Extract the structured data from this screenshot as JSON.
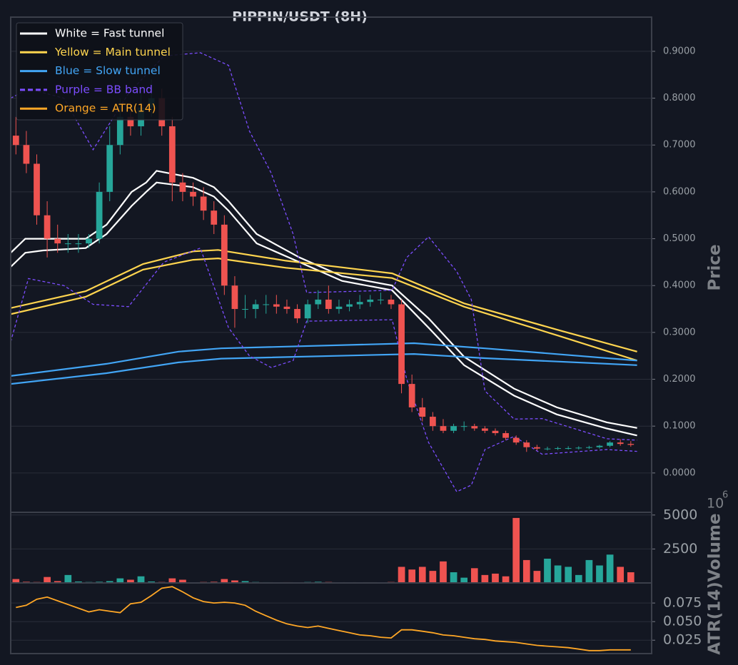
{
  "chart_data": [
    {
      "type": "candlestick",
      "title": "PIPPIN/USDT (8H)",
      "ylabel": "Price",
      "xlim": [
        -0.5,
        61
      ],
      "ylim": [
        -0.084,
        0.973
      ],
      "yticks": [
        {
          "value": 0,
          "label": "0.0000"
        },
        {
          "value": 0.1,
          "label": "0.1000"
        },
        {
          "value": 0.2,
          "label": "0.2000"
        },
        {
          "value": 0.3,
          "label": "0.3000"
        },
        {
          "value": 0.4,
          "label": "0.4000"
        },
        {
          "value": 0.5,
          "label": "0.5000"
        },
        {
          "value": 0.6,
          "label": "0.6000"
        },
        {
          "value": 0.7,
          "label": "0.7000"
        },
        {
          "value": 0.8,
          "label": "0.8000"
        },
        {
          "value": 0.9,
          "label": "0.9000"
        }
      ],
      "grid": true,
      "legend": "upper left",
      "up_color": "#26a69a",
      "down_color": "#ef5350",
      "open": [
        0.72,
        0.7,
        0.66,
        0.55,
        0.5,
        0.49,
        0.49,
        0.49,
        0.5,
        0.6,
        0.7,
        0.76,
        0.74,
        0.78,
        0.8,
        0.74,
        0.62,
        0.6,
        0.59,
        0.56,
        0.53,
        0.4,
        0.35,
        0.35,
        0.36,
        0.36,
        0.355,
        0.35,
        0.33,
        0.36,
        0.37,
        0.35,
        0.355,
        0.36,
        0.365,
        0.37,
        0.37,
        0.36,
        0.19,
        0.14,
        0.12,
        0.1,
        0.09,
        0.1,
        0.1,
        0.095,
        0.09,
        0.085,
        0.075,
        0.065,
        0.055,
        0.052,
        0.052,
        0.053,
        0.053,
        0.054,
        0.055,
        0.058,
        0.065,
        0.062
      ],
      "high": [
        0.76,
        0.73,
        0.68,
        0.58,
        0.53,
        0.51,
        0.51,
        0.51,
        0.62,
        0.74,
        0.8,
        0.79,
        0.81,
        0.84,
        0.82,
        0.76,
        0.64,
        0.62,
        0.61,
        0.58,
        0.55,
        0.42,
        0.38,
        0.37,
        0.38,
        0.38,
        0.37,
        0.36,
        0.37,
        0.39,
        0.4,
        0.37,
        0.37,
        0.38,
        0.38,
        0.385,
        0.38,
        0.37,
        0.21,
        0.16,
        0.13,
        0.115,
        0.105,
        0.11,
        0.105,
        0.1,
        0.095,
        0.09,
        0.08,
        0.07,
        0.06,
        0.056,
        0.056,
        0.057,
        0.057,
        0.058,
        0.06,
        0.068,
        0.072,
        0.068
      ],
      "low": [
        0.68,
        0.64,
        0.53,
        0.46,
        0.47,
        0.47,
        0.47,
        0.48,
        0.49,
        0.58,
        0.68,
        0.72,
        0.72,
        0.76,
        0.72,
        0.58,
        0.58,
        0.57,
        0.54,
        0.51,
        0.38,
        0.31,
        0.33,
        0.33,
        0.34,
        0.34,
        0.34,
        0.32,
        0.32,
        0.35,
        0.34,
        0.34,
        0.345,
        0.35,
        0.355,
        0.36,
        0.35,
        0.17,
        0.13,
        0.11,
        0.09,
        0.085,
        0.085,
        0.09,
        0.09,
        0.085,
        0.08,
        0.07,
        0.06,
        0.045,
        0.048,
        0.048,
        0.049,
        0.05,
        0.05,
        0.051,
        0.052,
        0.055,
        0.058,
        0.056
      ],
      "close": [
        0.7,
        0.66,
        0.55,
        0.5,
        0.49,
        0.49,
        0.49,
        0.5,
        0.6,
        0.7,
        0.76,
        0.74,
        0.78,
        0.8,
        0.74,
        0.62,
        0.6,
        0.59,
        0.56,
        0.53,
        0.4,
        0.35,
        0.35,
        0.36,
        0.36,
        0.355,
        0.35,
        0.33,
        0.36,
        0.37,
        0.35,
        0.355,
        0.36,
        0.365,
        0.37,
        0.37,
        0.36,
        0.19,
        0.14,
        0.12,
        0.1,
        0.09,
        0.1,
        0.1,
        0.095,
        0.09,
        0.085,
        0.075,
        0.065,
        0.055,
        0.052,
        0.052,
        0.053,
        0.053,
        0.054,
        0.055,
        0.058,
        0.065,
        0.062,
        0.06
      ],
      "series": [
        {
          "name": "White = Fast tunnel",
          "color": "#ffffff",
          "linestyle": "solid",
          "x": [
            -0.5,
            0.9,
            2.6,
            6.7,
            8.7,
            11.1,
            12.5,
            13.5,
            17,
            19,
            20.4,
            23.1,
            27.2,
            31.3,
            36.1,
            39.6,
            43,
            47.8,
            51.9,
            56.7,
            59.6
          ],
          "values": [
            0.47,
            0.5,
            0.5,
            0.5,
            0.53,
            0.6,
            0.62,
            0.645,
            0.63,
            0.61,
            0.58,
            0.51,
            0.46,
            0.42,
            0.4,
            0.33,
            0.248,
            0.18,
            0.14,
            0.108,
            0.096
          ],
          "lower": [
            0.44,
            0.47,
            0.475,
            0.48,
            0.51,
            0.57,
            0.6,
            0.62,
            0.61,
            0.59,
            0.56,
            0.49,
            0.45,
            0.41,
            0.39,
            0.31,
            0.23,
            0.165,
            0.125,
            0.095,
            0.08
          ]
        },
        {
          "name": "Yellow = Main tunnel",
          "color": "#ffd54f",
          "linestyle": "solid",
          "x": [
            -0.5,
            6.7,
            12.2,
            17,
            19.4,
            25.9,
            36.1,
            43,
            51.9,
            59.6
          ],
          "values": [
            0.352,
            0.388,
            0.446,
            0.473,
            0.476,
            0.453,
            0.426,
            0.362,
            0.306,
            0.259
          ],
          "lower": [
            0.339,
            0.376,
            0.434,
            0.455,
            0.458,
            0.438,
            0.416,
            0.355,
            0.294,
            0.24
          ]
        },
        {
          "name": "Blue = Slow tunnel",
          "color": "#42a5f5",
          "linestyle": "solid",
          "x": [
            -0.5,
            8.7,
            15.6,
            19.7,
            38.2,
            45,
            59.6
          ],
          "values": [
            0.207,
            0.233,
            0.259,
            0.266,
            0.277,
            0.266,
            0.24
          ],
          "lower": [
            0.19,
            0.213,
            0.236,
            0.244,
            0.254,
            0.245,
            0.23
          ]
        },
        {
          "name": "Purple = BB band",
          "color": "#7c4dff",
          "linestyle": "dashed",
          "x": [
            -0.5,
            1.2,
            4.6,
            7.4,
            10.8,
            14.2,
            17.7,
            20.4,
            22.4,
            24.5,
            26.6,
            27.9,
            36.1,
            37.5,
            39.6,
            42.3,
            43.7,
            45,
            47.8,
            50.5,
            56.7,
            59.6
          ],
          "values": [
            0.8,
            0.82,
            0.8,
            0.69,
            0.81,
            0.89,
            0.897,
            0.87,
            0.73,
            0.64,
            0.51,
            0.385,
            0.39,
            0.46,
            0.504,
            0.43,
            0.37,
            0.175,
            0.115,
            0.116,
            0.073,
            0.07
          ],
          "lower": [
            0.28,
            0.415,
            0.4,
            0.36,
            0.355,
            0.45,
            0.48,
            0.31,
            0.25,
            0.225,
            0.24,
            0.324,
            0.327,
            0.2,
            0.065,
            -0.04,
            -0.026,
            0.05,
            0.078,
            0.04,
            0.05,
            0.046
          ]
        }
      ]
    },
    {
      "type": "bar",
      "ylabel": "Volume",
      "offset_text": "10",
      "offset_exponent": "6",
      "xlim": [
        -0.5,
        61
      ],
      "ylim": [
        0,
        5200
      ],
      "yticks": [
        2500,
        5000
      ],
      "grid": true,
      "values": [
        300,
        100,
        80,
        450,
        150,
        600,
        120,
        80,
        100,
        150,
        350,
        250,
        500,
        120,
        80,
        350,
        250,
        50,
        80,
        100,
        300,
        200,
        150,
        80,
        60,
        40,
        60,
        40,
        80,
        100,
        80,
        50,
        50,
        40,
        30,
        40,
        80,
        1200,
        1000,
        1200,
        900,
        1600,
        800,
        400,
        1100,
        600,
        700,
        500,
        4800,
        1700,
        900,
        1800,
        1300,
        1200,
        600,
        1700,
        1300,
        2100,
        1200,
        800
      ]
    },
    {
      "type": "line",
      "ylabel": "ATR(14)",
      "xlim": [
        -0.5,
        61
      ],
      "ylim": [
        0.007,
        0.102
      ],
      "yticks": [
        0.025,
        {
          "value": 0.05,
          "label": "0.050"
        },
        0.075
      ],
      "grid": true,
      "series": [
        {
          "name": "Orange = ATR(14)",
          "color": "#ffa726",
          "values": [
            0.069,
            0.072,
            0.08,
            0.083,
            0.078,
            0.073,
            0.068,
            0.063,
            0.066,
            0.064,
            0.062,
            0.074,
            0.076,
            0.085,
            0.095,
            0.097,
            0.09,
            0.082,
            0.077,
            0.075,
            0.076,
            0.075,
            0.072,
            0.064,
            0.058,
            0.052,
            0.047,
            0.044,
            0.042,
            0.044,
            0.041,
            0.038,
            0.035,
            0.032,
            0.031,
            0.029,
            0.028,
            0.039,
            0.039,
            0.037,
            0.035,
            0.032,
            0.031,
            0.029,
            0.027,
            0.026,
            0.024,
            0.023,
            0.022,
            0.02,
            0.018,
            0.017,
            0.016,
            0.015,
            0.013,
            0.011,
            0.011,
            0.012,
            0.012,
            0.012
          ]
        }
      ]
    }
  ]
}
